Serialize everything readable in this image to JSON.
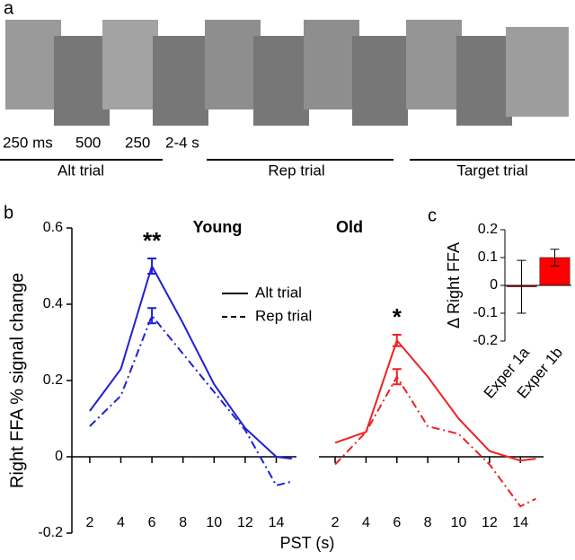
{
  "panel_labels": [
    "a",
    "b",
    "c"
  ],
  "panel_a": {
    "timings": [
      "250 ms",
      "500",
      "250",
      "2-4 s"
    ],
    "trials": [
      "Alt trial",
      "Rep trial",
      "Target trial"
    ]
  },
  "chart_data": [
    {
      "type": "line",
      "title": "Young",
      "y_label": "Right FFA % signal change",
      "x_label": "PST (s)",
      "annotation": "**",
      "x": [
        2,
        4,
        6,
        8,
        10,
        12,
        14,
        15
      ],
      "xlim": [
        0.85,
        15.3
      ],
      "xticks": [
        2,
        4,
        6,
        8,
        10,
        12,
        14
      ],
      "ylim": [
        -0.2,
        0.6
      ],
      "yticks": [
        0.6,
        0.4,
        0.2,
        0,
        -0.2
      ],
      "legend": true,
      "series": [
        {
          "name": "Alt trial",
          "color": "#1f1fd6",
          "linestyle": "solid",
          "values": [
            0.12,
            0.23,
            0.5,
            0.35,
            0.19,
            0.075,
            0,
            -0.005
          ],
          "errors": [
            null,
            null,
            0.02,
            null,
            null,
            null,
            null,
            null
          ]
        },
        {
          "name": "Rep trial",
          "color": "#1f1fd6",
          "linestyle": "dashdot",
          "values": [
            0.08,
            0.16,
            0.37,
            0.27,
            0.17,
            0.07,
            -0.075,
            -0.065
          ],
          "errors": [
            null,
            null,
            0.02,
            null,
            null,
            null,
            null,
            null
          ]
        }
      ]
    },
    {
      "type": "line",
      "title": "Old",
      "annotation": "*",
      "x": [
        2,
        4,
        6,
        8,
        10,
        12,
        14,
        15
      ],
      "xlim": [
        0.95,
        15.5
      ],
      "xticks": [
        2,
        4,
        6,
        8,
        10,
        12,
        14
      ],
      "ylim": [
        -0.2,
        0.6
      ],
      "series": [
        {
          "color": "#ee2222",
          "linestyle": "solid",
          "values": [
            0.037,
            0.065,
            0.305,
            0.21,
            0.1,
            0.015,
            -0.01,
            -0.005
          ],
          "errors": [
            null,
            null,
            0.015,
            null,
            null,
            null,
            null,
            null
          ]
        },
        {
          "color": "#ee2222",
          "linestyle": "dashdot",
          "values": [
            -0.02,
            0.065,
            0.21,
            0.08,
            0.06,
            -0.02,
            -0.13,
            -0.11
          ],
          "errors": [
            null,
            null,
            0.02,
            null,
            null,
            null,
            null,
            null
          ]
        }
      ]
    },
    {
      "type": "bar",
      "y_label": "Δ Right FFA",
      "categories": [
        "Exper 1a",
        "Exper 1b"
      ],
      "values": [
        -0.005,
        0.1
      ],
      "errors": [
        0.095,
        0.03
      ],
      "color": "#ff0000",
      "ylim": [
        -0.2,
        0.2
      ],
      "yticks": [
        0.2,
        0.1,
        0,
        -0.1,
        -0.2
      ]
    }
  ]
}
